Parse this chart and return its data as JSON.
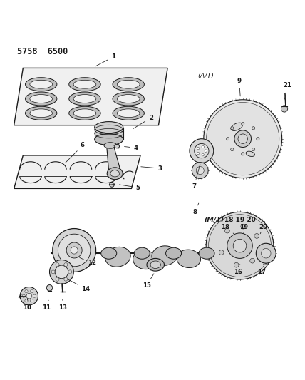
{
  "title": "5758  6500",
  "bg_color": "#ffffff",
  "line_color": "#1a1a1a",
  "figsize": [
    4.28,
    5.33
  ],
  "dpi": 100
}
